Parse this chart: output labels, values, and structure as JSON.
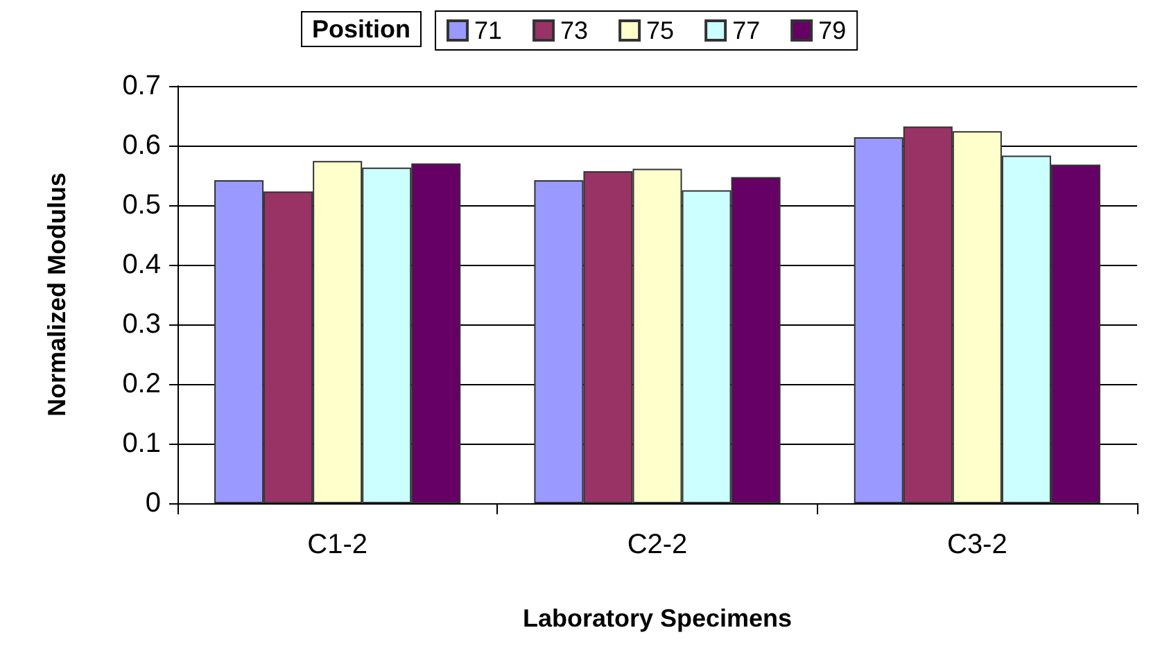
{
  "chart_data": {
    "type": "bar",
    "xlabel": "Laboratory Specimens",
    "ylabel": "Normalized Modulus",
    "legend_title": "Position",
    "categories": [
      "C1-2",
      "C2-2",
      "C3-2"
    ],
    "series": [
      {
        "name": "71",
        "color": "#9999ff",
        "values": [
          0.542,
          0.542,
          0.614
        ]
      },
      {
        "name": "73",
        "color": "#993366",
        "values": [
          0.523,
          0.557,
          0.632
        ]
      },
      {
        "name": "75",
        "color": "#ffffcc",
        "values": [
          0.574,
          0.561,
          0.624
        ]
      },
      {
        "name": "77",
        "color": "#ccffff",
        "values": [
          0.563,
          0.525,
          0.583
        ]
      },
      {
        "name": "79",
        "color": "#660066",
        "values": [
          0.57,
          0.547,
          0.568
        ]
      }
    ],
    "ylim": [
      0,
      0.7
    ],
    "yticks": [
      0,
      0.1,
      0.2,
      0.3,
      0.4,
      0.5,
      0.6,
      0.7
    ],
    "grid": "y",
    "legend": "top"
  }
}
